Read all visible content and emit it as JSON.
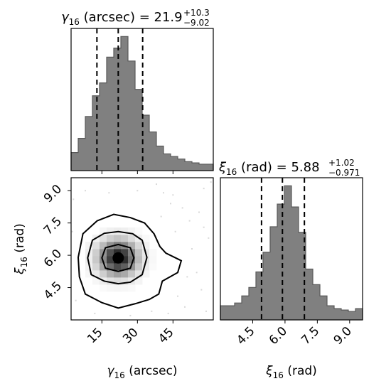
{
  "colors": {
    "hist_fill": "#808080",
    "hist_edge": "#5a5a5a",
    "ink": "#000000",
    "dot": "#777777"
  },
  "chart_data": {
    "type": "corner",
    "grid": false,
    "parameters": [
      {
        "key": "gamma",
        "axis_label_main": "γ",
        "axis_label_sub": "16",
        "axis_label_unit": " (arcsec)",
        "title_main": "γ",
        "title_sub": "16",
        "title_rest": " (arcsec) = 21.9",
        "title_plus": "+10.3",
        "title_minus": "−9.02",
        "median": 21.9,
        "err_plus": 10.3,
        "err_minus": 9.02,
        "range": [
          2,
          62
        ],
        "ticks": [
          15,
          30,
          45
        ],
        "tick_labels": [
          "15",
          "30",
          "45"
        ],
        "quantiles": [
          12.9,
          21.9,
          32.2
        ],
        "hist_bins": [
          2,
          5,
          8,
          11,
          14,
          17,
          20,
          23,
          26,
          29,
          32,
          35,
          38,
          41,
          44,
          47,
          50,
          53,
          56,
          59,
          62
        ],
        "hist_counts": [
          14,
          25,
          42,
          58,
          68,
          88,
          95,
          104,
          85,
          63,
          43,
          30,
          19,
          13,
          11,
          9,
          7,
          6,
          5,
          5
        ]
      },
      {
        "key": "xi",
        "axis_label_main": "ξ",
        "axis_label_sub": "16",
        "axis_label_unit": " (rad)",
        "title_main": "ξ",
        "title_sub": "16",
        "title_rest": " (rad) = 5.88",
        "title_plus": "+1.02",
        "title_minus": "−0.971",
        "median": 5.88,
        "err_plus": 1.02,
        "err_minus": 0.971,
        "range": [
          3.0,
          9.6
        ],
        "ticks": [
          4.5,
          6.0,
          7.5,
          9.0
        ],
        "tick_labels": [
          "4.5",
          "6.0",
          "7.5",
          "9.0"
        ],
        "quantiles": [
          4.91,
          5.88,
          6.9
        ],
        "hist_bins": [
          3.0,
          3.33,
          3.66,
          3.99,
          4.32,
          4.65,
          4.98,
          5.31,
          5.64,
          5.97,
          6.3,
          6.63,
          6.96,
          7.29,
          7.62,
          7.95,
          8.28,
          8.61,
          8.94,
          9.27,
          9.6
        ],
        "hist_counts": [
          10,
          10,
          12,
          17,
          23,
          34,
          48,
          66,
          82,
          95,
          80,
          62,
          36,
          25,
          17,
          10,
          8,
          7,
          6,
          8
        ]
      }
    ],
    "joint": {
      "peak": [
        21.9,
        5.88
      ],
      "contour_levels": [
        0.3,
        0.6,
        0.9,
        1.0
      ],
      "contours": [
        [
          [
            21,
            5.88
          ],
          [
            22.8,
            5.88
          ],
          [
            22.8,
            6.02
          ],
          [
            21,
            6.02
          ]
        ],
        [
          [
            15,
            5.88
          ],
          [
            16.5,
            6.35
          ],
          [
            21.9,
            6.5
          ],
          [
            27,
            6.35
          ],
          [
            28.5,
            5.88
          ],
          [
            27,
            5.4
          ],
          [
            21.9,
            5.25
          ],
          [
            16.5,
            5.4
          ]
        ],
        [
          [
            9,
            5.88
          ],
          [
            11,
            6.7
          ],
          [
            16,
            7.02
          ],
          [
            21.9,
            7.1
          ],
          [
            28,
            7.0
          ],
          [
            32,
            6.7
          ],
          [
            34,
            5.9
          ],
          [
            32,
            5.1
          ],
          [
            27,
            4.75
          ],
          [
            21.9,
            4.68
          ],
          [
            16,
            4.8
          ],
          [
            10.5,
            5.1
          ]
        ],
        [
          [
            5,
            5.9
          ],
          [
            7,
            7.0
          ],
          [
            13,
            7.6
          ],
          [
            20,
            7.9
          ],
          [
            27,
            7.75
          ],
          [
            33,
            7.5
          ],
          [
            37,
            7.0
          ],
          [
            39.5,
            6.4
          ],
          [
            42,
            6.1
          ],
          [
            48.5,
            5.75
          ],
          [
            47,
            5.2
          ],
          [
            40.5,
            4.8
          ],
          [
            39,
            4.2
          ],
          [
            35,
            3.95
          ],
          [
            29,
            3.75
          ],
          [
            21.9,
            3.55
          ],
          [
            15,
            3.8
          ],
          [
            8,
            4.2
          ],
          [
            5.5,
            5.0
          ]
        ]
      ],
      "density_sigma": [
        5.5,
        0.55
      ],
      "scatter": [
        [
          45,
          8.8
        ],
        [
          52,
          7.6
        ],
        [
          58,
          9.1
        ],
        [
          3,
          8.6
        ],
        [
          47,
          4.1
        ],
        [
          55,
          5.2
        ],
        [
          38,
          9.3
        ],
        [
          8,
          9.0
        ],
        [
          60,
          6.8
        ],
        [
          50,
          3.6
        ],
        [
          43,
          3.3
        ],
        [
          57,
          4.4
        ],
        [
          12,
          3.3
        ],
        [
          4,
          3.9
        ],
        [
          49,
          8.2
        ],
        [
          56,
          8.0
        ],
        [
          41,
          8.9
        ],
        [
          59,
          3.4
        ],
        [
          53,
          6.3
        ],
        [
          46,
          7.1
        ],
        [
          30,
          9.0
        ],
        [
          18,
          8.9
        ],
        [
          27,
          3.2
        ],
        [
          36,
          3.4
        ],
        [
          61,
          9.4
        ],
        [
          2.5,
          7.1
        ],
        [
          44,
          8.4
        ],
        [
          51,
          5.0
        ],
        [
          58,
          7.3
        ],
        [
          40,
          7.8
        ]
      ]
    }
  }
}
